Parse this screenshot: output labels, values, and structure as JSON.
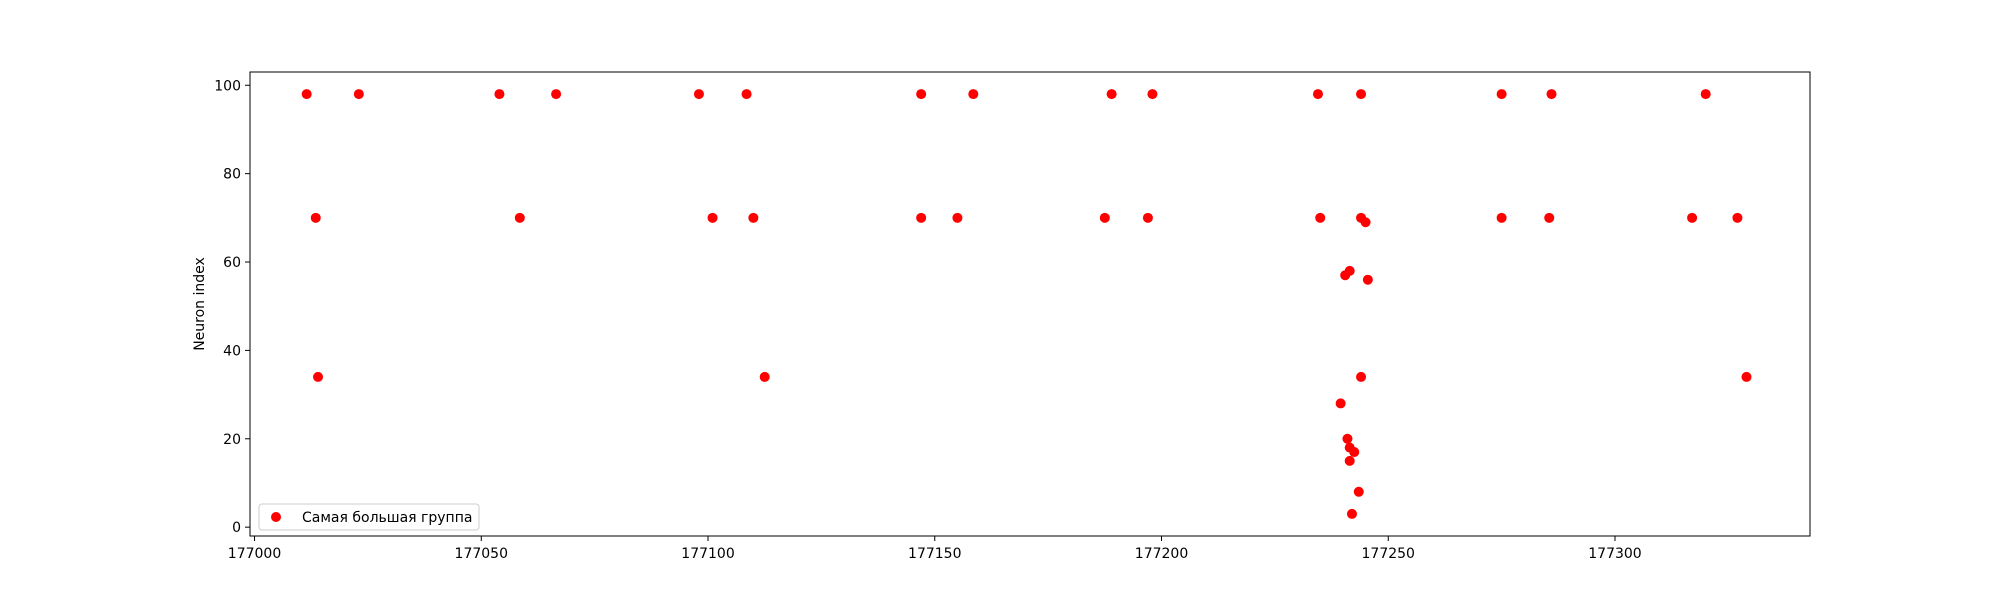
{
  "chart_data": {
    "type": "scatter",
    "title": "",
    "xlabel": "",
    "ylabel": "Neuron index",
    "xlim": [
      176999,
      177343
    ],
    "ylim": [
      -2,
      103
    ],
    "xticks": [
      177000,
      177050,
      177100,
      177150,
      177200,
      177250,
      177300
    ],
    "yticks": [
      0,
      20,
      40,
      60,
      80,
      100
    ],
    "grid": false,
    "legend_position": "lower-left",
    "series": [
      {
        "name": "Самая большая группа",
        "color": "#ff0000",
        "points": [
          [
            177011.5,
            98
          ],
          [
            177023,
            98
          ],
          [
            177054,
            98
          ],
          [
            177066.5,
            98
          ],
          [
            177098,
            98
          ],
          [
            177108.5,
            98
          ],
          [
            177147,
            98
          ],
          [
            177158.5,
            98
          ],
          [
            177189,
            98
          ],
          [
            177198,
            98
          ],
          [
            177234.5,
            98
          ],
          [
            177244,
            98
          ],
          [
            177275,
            98
          ],
          [
            177286,
            98
          ],
          [
            177320,
            98
          ],
          [
            177013.5,
            70
          ],
          [
            177058.5,
            70
          ],
          [
            177101,
            70
          ],
          [
            177110,
            70
          ],
          [
            177147,
            70
          ],
          [
            177155,
            70
          ],
          [
            177187.5,
            70
          ],
          [
            177197,
            70
          ],
          [
            177235,
            70
          ],
          [
            177244,
            70
          ],
          [
            177245,
            69
          ],
          [
            177275,
            70
          ],
          [
            177285.5,
            70
          ],
          [
            177317,
            70
          ],
          [
            177327,
            70
          ],
          [
            177240.5,
            57
          ],
          [
            177241.5,
            58
          ],
          [
            177245.5,
            56
          ],
          [
            177014,
            34
          ],
          [
            177112.5,
            34
          ],
          [
            177244,
            34
          ],
          [
            177329,
            34
          ],
          [
            177239.5,
            28
          ],
          [
            177241,
            20
          ],
          [
            177241.5,
            18
          ],
          [
            177242.5,
            17
          ],
          [
            177241.5,
            15
          ],
          [
            177243.5,
            8
          ],
          [
            177242,
            3
          ]
        ]
      }
    ]
  }
}
